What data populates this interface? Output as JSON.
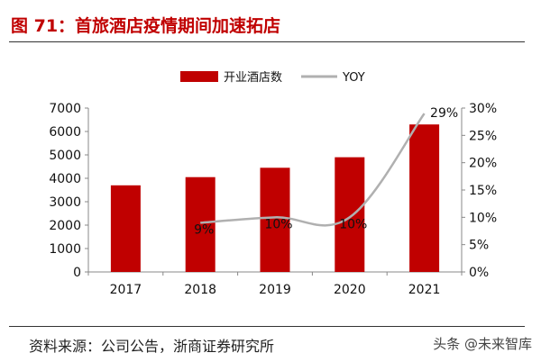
{
  "figure": {
    "title": "图 71：首旅酒店疫情期间加速拓店",
    "source": "资料来源：公司公告，浙商证券研究所",
    "watermark": "头条 @未来智库"
  },
  "colors": {
    "accent": "#c00000",
    "bar": "#c00000",
    "line": "#b0b0b0",
    "axis": "#888888",
    "text": "#111111"
  },
  "chart_data": {
    "type": "bar",
    "categories": [
      "2017",
      "2018",
      "2019",
      "2020",
      "2021"
    ],
    "series": [
      {
        "name": "开业酒店数",
        "type": "bar",
        "axis": "left",
        "values": [
          3700,
          4050,
          4450,
          4900,
          6300
        ]
      },
      {
        "name": "YOY",
        "type": "line",
        "axis": "right",
        "values": [
          null,
          9,
          10,
          10,
          29
        ],
        "labels": [
          "",
          "9%",
          "10%",
          "10%",
          "29%"
        ]
      }
    ],
    "y_left": {
      "min": 0,
      "max": 7000,
      "ticks": [
        "0",
        "1000",
        "2000",
        "3000",
        "4000",
        "5000",
        "6000",
        "7000"
      ]
    },
    "y_right": {
      "min": 0,
      "max": 30,
      "ticks": [
        "0%",
        "5%",
        "10%",
        "15%",
        "20%",
        "25%",
        "30%"
      ]
    },
    "legend_position": "top-center",
    "grid": false
  }
}
